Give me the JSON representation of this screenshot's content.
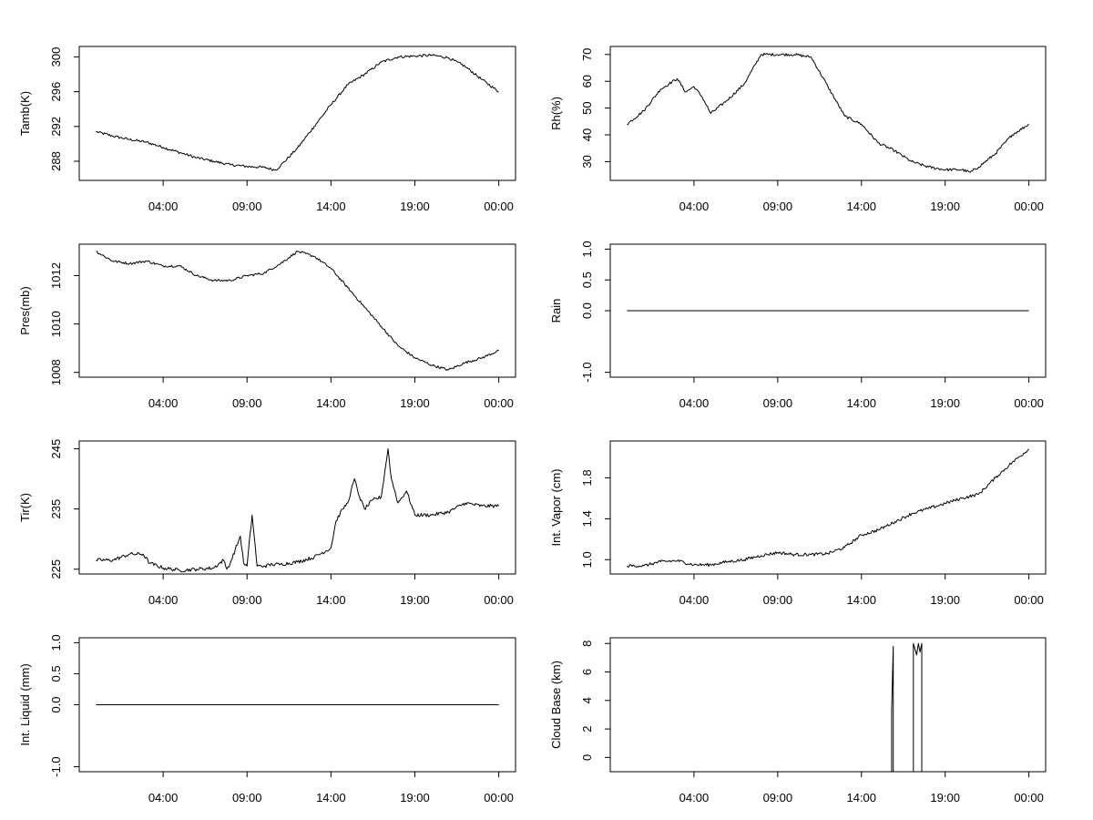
{
  "x_axis": {
    "tick_labels": [
      "04:00",
      "09:00",
      "14:00",
      "19:00",
      "00:00"
    ],
    "tick_hours": [
      4,
      9,
      14,
      19,
      24
    ],
    "range_hours": [
      -1,
      25
    ]
  },
  "chart_data": [
    {
      "type": "line",
      "ylabel": "Tamb(K)",
      "ylim": [
        285.8,
        301.2
      ],
      "yticks": [
        288,
        292,
        296,
        300
      ],
      "ytick_labels": [
        "288",
        "292",
        "296",
        "300"
      ],
      "x": [
        0,
        1,
        2,
        3,
        4,
        5,
        6,
        7,
        8,
        9,
        10,
        10.7,
        11,
        12,
        13,
        14,
        15,
        16,
        17,
        18,
        19,
        20,
        21,
        22,
        23,
        24
      ],
      "values": [
        291.4,
        290.9,
        290.5,
        290.2,
        289.6,
        289.0,
        288.4,
        288.0,
        287.6,
        287.4,
        287.3,
        287.0,
        287.5,
        289.5,
        292.0,
        294.5,
        296.8,
        298.0,
        299.4,
        300.0,
        300.1,
        300.2,
        299.9,
        298.9,
        297.4,
        296.0
      ],
      "noise": 0.15
    },
    {
      "type": "line",
      "ylabel": "Rh(%)",
      "ylim": [
        23,
        73
      ],
      "yticks": [
        30,
        40,
        50,
        60,
        70
      ],
      "ytick_labels": [
        "30",
        "40",
        "50",
        "60",
        "70"
      ],
      "x": [
        0,
        1,
        2,
        2.5,
        3,
        3.5,
        4,
        4.5,
        5,
        6,
        7,
        8,
        9,
        10,
        11,
        12,
        13,
        14,
        15,
        16,
        17,
        18,
        19,
        20,
        20.5,
        21,
        22,
        23,
        24
      ],
      "values": [
        44,
        49,
        57,
        59,
        61,
        56,
        58,
        54,
        48,
        53,
        59,
        70,
        70,
        70,
        69,
        58,
        47,
        44,
        37,
        34,
        30,
        28,
        27,
        27,
        26,
        28,
        33,
        40,
        44
      ],
      "noise": 0.5
    },
    {
      "type": "line",
      "ylabel": "Pres(mb)",
      "ylim": [
        1007.8,
        1013.3
      ],
      "yticks": [
        1008,
        1010,
        1012
      ],
      "ytick_labels": [
        "1008",
        "1010",
        "1012"
      ],
      "x": [
        0,
        1,
        2,
        3,
        4,
        5,
        6,
        7,
        8,
        9,
        10,
        11,
        12,
        13,
        14,
        15,
        16,
        17,
        18,
        19,
        20,
        21,
        22,
        23,
        24
      ],
      "values": [
        1013.0,
        1012.6,
        1012.5,
        1012.6,
        1012.4,
        1012.4,
        1012.0,
        1011.8,
        1011.8,
        1012.0,
        1012.1,
        1012.5,
        1013.0,
        1012.8,
        1012.3,
        1011.5,
        1010.7,
        1009.9,
        1009.1,
        1008.6,
        1008.3,
        1008.1,
        1008.4,
        1008.6,
        1008.9
      ],
      "noise": 0.05
    },
    {
      "type": "line",
      "ylabel": "Rain",
      "ylim": [
        -1.08,
        1.08
      ],
      "yticks": [
        -1.0,
        0.0,
        0.5,
        1.0
      ],
      "ytick_labels": [
        "-1.0",
        "0.0",
        "0.5",
        "1.0"
      ],
      "x": [
        0,
        24
      ],
      "values": [
        0,
        0
      ],
      "noise": 0
    },
    {
      "type": "line",
      "ylabel": "Tir(K)",
      "ylim": [
        224.2,
        246.3
      ],
      "yticks": [
        225,
        235,
        245
      ],
      "ytick_labels": [
        "225",
        "235",
        "245"
      ],
      "x": [
        0,
        1,
        2,
        2.8,
        3.2,
        4,
        5,
        6,
        7,
        7.6,
        7.8,
        8,
        8.6,
        8.8,
        9,
        9.3,
        9.6,
        10,
        10.5,
        11,
        12,
        13,
        14,
        14.3,
        14.7,
        15,
        15.4,
        15.7,
        16,
        16.5,
        17,
        17.4,
        17.6,
        18,
        18.5,
        19,
        20,
        21,
        22,
        23,
        24
      ],
      "values": [
        226.5,
        226.5,
        227.5,
        227.5,
        226.0,
        225.2,
        224.8,
        225.0,
        225.2,
        226.5,
        225.0,
        226.0,
        230.5,
        226.0,
        225.5,
        234.0,
        225.5,
        225.5,
        225.8,
        225.8,
        226.2,
        227.0,
        228.5,
        233.0,
        235.0,
        236.0,
        240.0,
        237.0,
        235.0,
        236.5,
        237.0,
        245.0,
        240.0,
        236.0,
        238.0,
        234.0,
        234.0,
        234.5,
        236.0,
        235.5,
        235.5
      ],
      "noise": 0.3
    },
    {
      "type": "line",
      "ylabel": "Int. Vapor (cm)",
      "ylim": [
        0.86,
        2.16
      ],
      "yticks": [
        1.0,
        1.4,
        1.8
      ],
      "ytick_labels": [
        "1.0",
        "1.4",
        "1.8"
      ],
      "x": [
        0,
        1,
        2,
        3,
        4,
        5,
        6,
        7,
        8,
        9,
        10,
        11,
        12,
        13,
        14,
        15,
        16,
        17,
        18,
        19,
        20,
        21,
        22,
        23,
        24
      ],
      "values": [
        0.94,
        0.94,
        0.98,
        0.99,
        0.95,
        0.95,
        0.98,
        1.0,
        1.04,
        1.07,
        1.05,
        1.05,
        1.06,
        1.12,
        1.24,
        1.29,
        1.37,
        1.45,
        1.5,
        1.55,
        1.6,
        1.64,
        1.8,
        1.95,
        2.08
      ],
      "noise": 0.015
    },
    {
      "type": "line",
      "ylabel": "Int. Liquid (mm)",
      "ylim": [
        -1.08,
        1.08
      ],
      "yticks": [
        -1.0,
        0.0,
        0.5,
        1.0
      ],
      "ytick_labels": [
        "-1.0",
        "0.0",
        "0.5",
        "1.0"
      ],
      "x": [
        0,
        24
      ],
      "values": [
        0,
        0
      ],
      "noise": 0
    },
    {
      "type": "line",
      "ylabel": "Cloud Base (km)",
      "ylim": [
        -1.0,
        8.4
      ],
      "yticks": [
        0,
        2,
        4,
        6,
        8
      ],
      "ytick_labels": [
        "0",
        "2",
        "4",
        "6",
        "8"
      ],
      "x": [
        0,
        15.8,
        15.8,
        15.9,
        15.9,
        16.05,
        16.05,
        17.1,
        17.1,
        17.3,
        17.4,
        17.5,
        17.6,
        17.6,
        24
      ],
      "values": [
        -1,
        -1,
        3.3,
        7.8,
        -1,
        -1,
        -1,
        -1,
        8.0,
        7.2,
        8.0,
        7.4,
        8.0,
        -1,
        -1
      ],
      "noise": 0
    }
  ]
}
